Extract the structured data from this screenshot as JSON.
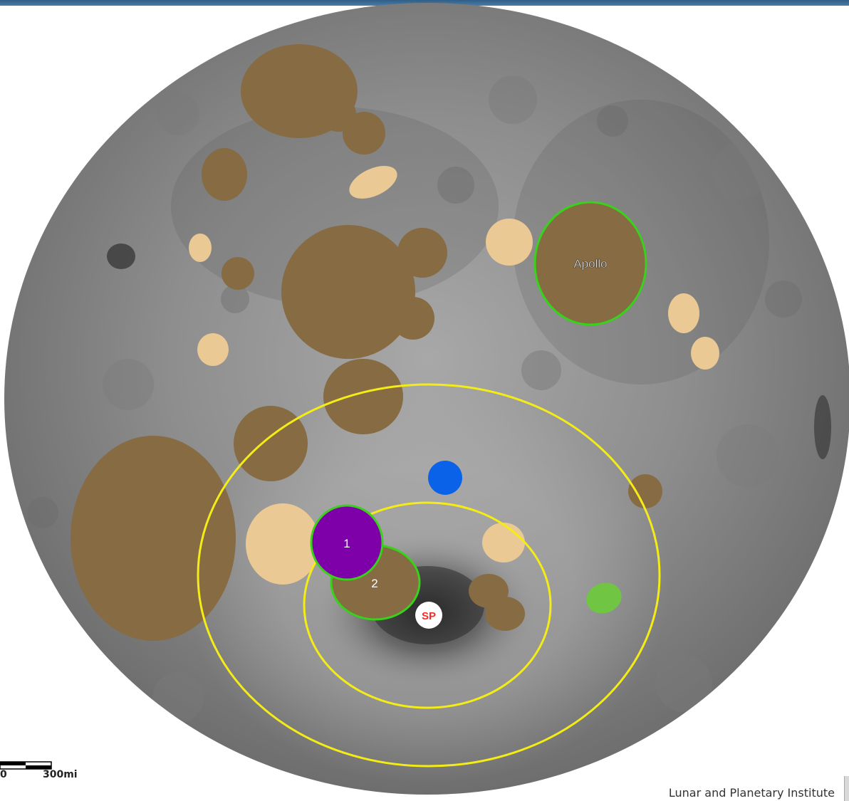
{
  "map": {
    "labels": {
      "apollo": "Apollo",
      "basin_1": "1",
      "basin_2": "2",
      "south_pole": "SP"
    },
    "scale_bar": {
      "left_label": "0",
      "right_label": "300mi"
    },
    "credit": "Lunar and Planetary Institute",
    "colors": {
      "brown_crater": "#866b43",
      "tan_crater": "#ebc994",
      "purple_basin": "#7d00a8",
      "green_outline": "#39d11b",
      "yellow_ring": "#f4ec16",
      "blue_marker": "#0a62e8",
      "green_marker": "#70c543",
      "south_pole_text": "#ff2828"
    }
  }
}
